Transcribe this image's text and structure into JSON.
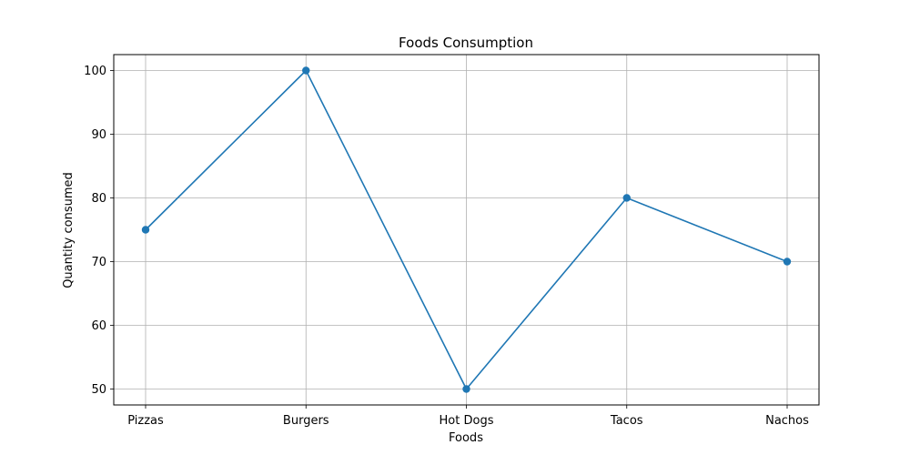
{
  "chart_data": {
    "type": "line",
    "title": "Foods Consumption",
    "xlabel": "Foods",
    "ylabel": "Quantity consumed",
    "categories": [
      "Pizzas",
      "Burgers",
      "Hot Dogs",
      "Tacos",
      "Nachos"
    ],
    "series": [
      {
        "values": [
          75,
          100,
          50,
          80,
          70
        ],
        "color": "#1f77b4",
        "marker": "circle"
      }
    ],
    "yticks": [
      50,
      60,
      70,
      80,
      90,
      100
    ],
    "ylim": [
      47.5,
      102.5
    ],
    "grid": true,
    "legend": "none",
    "colors": {
      "grid": "#b0b0b0",
      "axes": "#000000",
      "background": "#ffffff"
    }
  }
}
